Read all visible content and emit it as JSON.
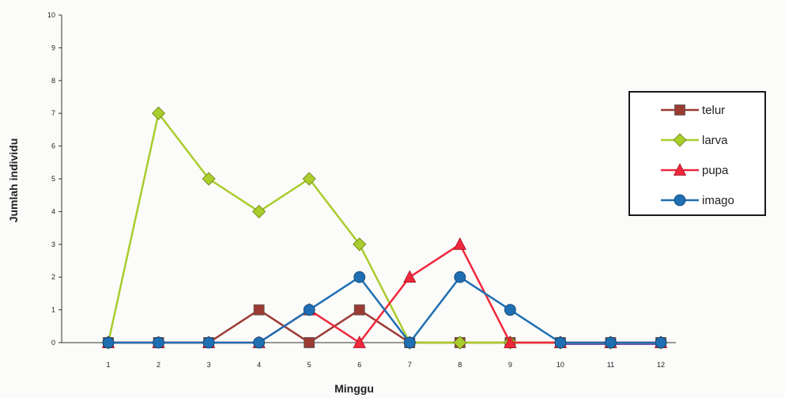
{
  "chart_data": {
    "type": "line",
    "xlabel": "Minggu",
    "ylabel": "Jumlah individu",
    "x": [
      1,
      2,
      3,
      4,
      5,
      6,
      7,
      8,
      9,
      10,
      11,
      12
    ],
    "xticks": [
      "1",
      "2",
      "3",
      "4",
      "5",
      "6",
      "7",
      "8",
      "9",
      "10",
      "11",
      "12"
    ],
    "yticks": [
      "0",
      "1",
      "2",
      "3",
      "4",
      "5",
      "6",
      "7",
      "8",
      "9",
      "10"
    ],
    "ylim": [
      0,
      10
    ],
    "grid": false,
    "legend_position": "right",
    "series": [
      {
        "name": "telur",
        "color": "#9b3b33",
        "marker": "square",
        "values": [
          0,
          0,
          0,
          1,
          0,
          1,
          0,
          0,
          0,
          0,
          0,
          0
        ]
      },
      {
        "name": "larva",
        "color": "#a9cd2c",
        "marker": "diamond",
        "values": [
          0,
          7,
          5,
          4,
          5,
          3,
          0,
          0,
          0,
          0,
          0,
          0
        ]
      },
      {
        "name": "pupa",
        "color": "#f0283c",
        "marker": "triangle",
        "values": [
          0,
          0,
          0,
          0,
          1,
          0,
          2,
          3,
          0,
          0,
          0,
          0
        ]
      },
      {
        "name": "imago",
        "color": "#1f6fb2",
        "marker": "circle",
        "values": [
          0,
          0,
          0,
          0,
          1,
          2,
          0,
          2,
          1,
          0,
          0,
          0
        ]
      }
    ],
    "baseline_color": "#6a54b8"
  }
}
